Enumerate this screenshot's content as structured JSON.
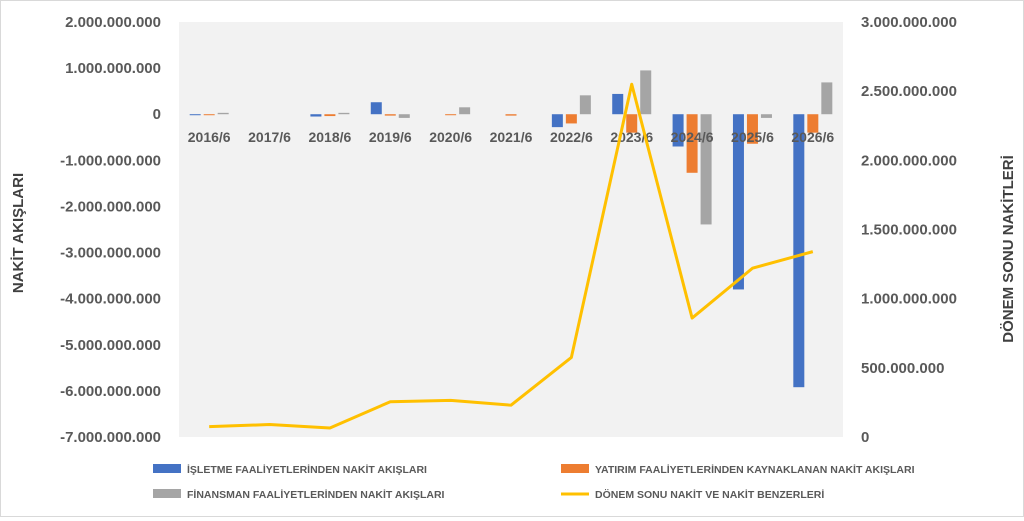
{
  "chart_data": {
    "type": "bar",
    "categories": [
      "2016/6",
      "2017/6",
      "2018/6",
      "2019/6",
      "2020/6",
      "2021/6",
      "2022/6",
      "2023/6",
      "2024/6",
      "2025/6",
      "2026/6"
    ],
    "series": [
      {
        "name": "İŞLETME FAALİYETLERİNDEN NAKİT AKIŞLARI",
        "type": "bar",
        "axis": "left",
        "color": "#4472C4",
        "values": [
          -20000000,
          0,
          -50000000,
          260000000,
          0,
          0,
          -280000000,
          440000000,
          -700000000,
          -3800000000,
          -5920000000
        ]
      },
      {
        "name": "YATIRIM FAALİYETLERİNDEN KAYNAKLANAN NAKİT AKIŞLARI",
        "type": "bar",
        "axis": "left",
        "color": "#ED7D31",
        "values": [
          -10000000,
          0,
          -40000000,
          -30000000,
          -20000000,
          -30000000,
          -200000000,
          -400000000,
          -1270000000,
          -640000000,
          -400000000
        ]
      },
      {
        "name": "FİNANSMAN FAALİYETLERİNDEN NAKİT AKIŞLARI",
        "type": "bar",
        "axis": "left",
        "color": "#A5A5A5",
        "values": [
          30000000,
          0,
          30000000,
          -80000000,
          150000000,
          0,
          410000000,
          950000000,
          -2390000000,
          -80000000,
          690000000
        ]
      },
      {
        "name": "DÖNEM SONU NAKİT VE NAKİT BENZERLERİ",
        "type": "line",
        "axis": "right",
        "color": "#FFC000",
        "values": [
          75000000,
          90000000,
          65000000,
          255000000,
          265000000,
          230000000,
          575000000,
          2550000000,
          860000000,
          1220000000,
          1340000000
        ]
      }
    ],
    "y_left": {
      "label": "NAKİT AKIŞLARI",
      "min": -7000000000,
      "max": 2000000000,
      "ticks": [
        "2.000.000.000",
        "1.000.000.000",
        "0",
        "-1.000.000.000",
        "-2.000.000.000",
        "-3.000.000.000",
        "-4.000.000.000",
        "-5.000.000.000",
        "-6.000.000.000",
        "-7.000.000.000"
      ]
    },
    "y_right": {
      "label": "DÖNEM SONU NAKİTLERİ",
      "min": 0,
      "max": 3000000000,
      "ticks": [
        "3.000.000.000",
        "2.500.000.000",
        "2.000.000.000",
        "1.500.000.000",
        "1.000.000.000",
        "500.000.000",
        "0"
      ]
    },
    "grid": false,
    "legend": "bottom"
  }
}
